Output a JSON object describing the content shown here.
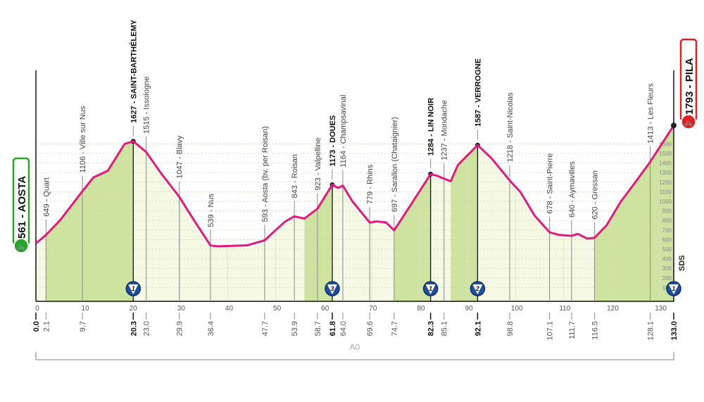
{
  "chart_data": {
    "type": "area",
    "title": "",
    "xlabel": "",
    "ylabel": "",
    "xlim": [
      0,
      133
    ],
    "ylim": [
      0,
      1800
    ],
    "x_ticks": [
      0,
      10,
      20,
      30,
      40,
      50,
      60,
      70,
      80,
      90,
      100,
      110,
      120,
      130
    ],
    "y_ticks": [
      100,
      200,
      300,
      400,
      500,
      600,
      700,
      800,
      900,
      1000,
      1100,
      1200,
      1300,
      1400,
      1500,
      1600
    ],
    "line_color": "#e5197d",
    "climb_fill": "#cfe3a0",
    "flat_fill": "#f4f8e4",
    "profile": [
      [
        0,
        561
      ],
      [
        2.1,
        649
      ],
      [
        5,
        800
      ],
      [
        9.7,
        1106
      ],
      [
        12,
        1250
      ],
      [
        15,
        1320
      ],
      [
        18.5,
        1600
      ],
      [
        20.3,
        1627
      ],
      [
        23,
        1515
      ],
      [
        26,
        1300
      ],
      [
        29.9,
        1047
      ],
      [
        33,
        800
      ],
      [
        36.4,
        539
      ],
      [
        38,
        530
      ],
      [
        44,
        540
      ],
      [
        47.7,
        593
      ],
      [
        50,
        700
      ],
      [
        52,
        790
      ],
      [
        53.9,
        843
      ],
      [
        56,
        820
      ],
      [
        58.7,
        923
      ],
      [
        61.8,
        1173
      ],
      [
        63,
        1140
      ],
      [
        64,
        1164
      ],
      [
        66,
        1000
      ],
      [
        69.6,
        779
      ],
      [
        71,
        790
      ],
      [
        73,
        780
      ],
      [
        74.7,
        697
      ],
      [
        78,
        950
      ],
      [
        82.3,
        1284
      ],
      [
        83.5,
        1270
      ],
      [
        85.1,
        1237
      ],
      [
        86.5,
        1210
      ],
      [
        88,
        1380
      ],
      [
        92.1,
        1587
      ],
      [
        95,
        1450
      ],
      [
        98.8,
        1218
      ],
      [
        101,
        1100
      ],
      [
        104,
        850
      ],
      [
        107.1,
        678
      ],
      [
        109,
        650
      ],
      [
        111.7,
        640
      ],
      [
        113,
        660
      ],
      [
        115,
        610
      ],
      [
        116.5,
        620
      ],
      [
        119,
        750
      ],
      [
        122,
        1000
      ],
      [
        125,
        1200
      ],
      [
        128.1,
        1413
      ],
      [
        133,
        1793
      ]
    ],
    "climbs": [
      [
        2.1,
        20.3
      ],
      [
        56,
        61.8
      ],
      [
        74.7,
        82.3
      ],
      [
        86.5,
        92.1
      ],
      [
        116.5,
        133
      ]
    ],
    "waypoints": [
      {
        "km": "0.0",
        "x": 0,
        "label": "",
        "bold": true
      },
      {
        "km": "2.1",
        "x": 2.1,
        "label": "649 - Quart"
      },
      {
        "km": "9.7",
        "x": 9.7,
        "label": "1106 - Ville sur Nus"
      },
      {
        "km": "20.3",
        "x": 20.3,
        "label": "1627 - SAINT-BARTHÉLEMY",
        "bold": true,
        "gpm": "1"
      },
      {
        "km": "23.0",
        "x": 23.0,
        "label": "1515 - Issologne"
      },
      {
        "km": "29.9",
        "x": 29.9,
        "label": "1047 - Blavy"
      },
      {
        "km": "36.4",
        "x": 36.4,
        "label": "539 - Nus"
      },
      {
        "km": "47.7",
        "x": 47.7,
        "label": "593 - Aosta (bv. per Roisan)"
      },
      {
        "km": "53.9",
        "x": 53.9,
        "label": "843 - Roisan"
      },
      {
        "km": "58.7",
        "x": 58.7,
        "label": "923 - Valpelline"
      },
      {
        "km": "61.8",
        "x": 61.8,
        "label": "1173 - DOUES",
        "bold": true,
        "gpm": "3"
      },
      {
        "km": "64.0",
        "x": 64.0,
        "label": "1164 - Champsavinal"
      },
      {
        "km": "69.6",
        "x": 69.6,
        "label": "779 - Rhins"
      },
      {
        "km": "74.7",
        "x": 74.7,
        "label": "697 - Sarallon (Chataignier)"
      },
      {
        "km": "82.3",
        "x": 82.3,
        "label": "1284 - LIN NOIR",
        "bold": true,
        "gpm": "1"
      },
      {
        "km": "85.1",
        "x": 85.1,
        "label": "1237 - Mondache"
      },
      {
        "km": "92.1",
        "x": 92.1,
        "label": "1587 - VERROGNE",
        "bold": true,
        "gpm": "2"
      },
      {
        "km": "98.8",
        "x": 98.8,
        "label": "1218 - Saint-Nicolas"
      },
      {
        "km": "107.1",
        "x": 107.1,
        "label": "678 - Saint-Pierre"
      },
      {
        "km": "111.7",
        "x": 111.7,
        "label": "640 - Aymavilles"
      },
      {
        "km": "116.5",
        "x": 116.5,
        "label": "620 - Gressan"
      },
      {
        "km": "128.1",
        "x": 128.1,
        "label": "1413 - Les Fleurs"
      },
      {
        "km": "133.0",
        "x": 133,
        "label": "",
        "bold": true,
        "gpm": "1"
      }
    ],
    "start": {
      "label": "561 - AOSTA",
      "color": "#2aa52a"
    },
    "finish": {
      "label": "1793 - PILA",
      "color": "#e02020"
    },
    "road_label": "A0",
    "sds_label": "SDS"
  }
}
